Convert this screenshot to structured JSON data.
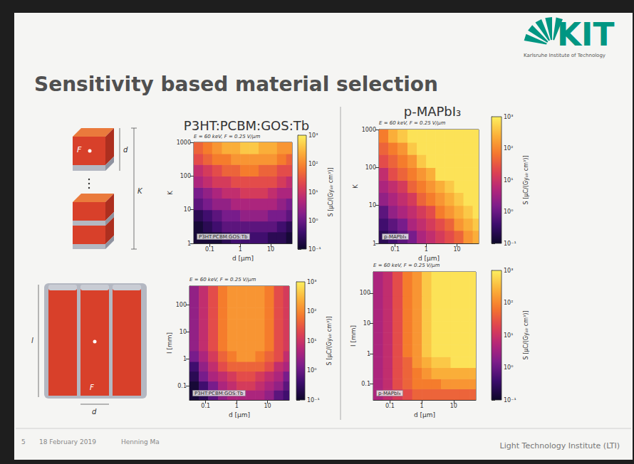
{
  "slide": {
    "title": "Sensitivity based material selection",
    "logo": "KIT",
    "logo_subtitle": "Karlsruhe Institute of Technology",
    "diagram": {
      "layered": {
        "area": "F",
        "thickness": "d",
        "layers": "K"
      },
      "columnar": {
        "length": "l",
        "area": "F",
        "width": "d"
      }
    },
    "footer": {
      "page": "5",
      "date": "18 February 2019",
      "author": "Henning Ma",
      "institute": "Light Technology Institute (LTI)"
    }
  },
  "chart_data": [
    {
      "type": "heatmap",
      "title": "P3HT:PCBM:GOS:Tb",
      "subtitle": "E = 60 keV, F = 0.25 V/μm",
      "annotations": [
        "P3HT:PCBM:GOS:Tb"
      ],
      "x_label": "d [μm]",
      "y_label": "K",
      "log": true,
      "grid": false,
      "xlim": [
        0.03,
        50
      ],
      "xticks": [
        0.1,
        1,
        10
      ],
      "ylim": [
        1,
        1000
      ],
      "yticks": [
        1,
        10,
        100,
        1000
      ],
      "x_bins": [
        0.03,
        0.06,
        0.12,
        0.25,
        0.5,
        1,
        2,
        4,
        8,
        16,
        32,
        50
      ],
      "y_bins": [
        1,
        2.2,
        4.6,
        10,
        22,
        46,
        100,
        220,
        460,
        1000
      ],
      "cells": [
        [
          0.05,
          0.096,
          0.16,
          0.25,
          0.33,
          0.38,
          0.38,
          0.35,
          0.28,
          0.19,
          0.13
        ],
        [
          0.12,
          0.22,
          0.37,
          0.57,
          0.75,
          0.87,
          0.89,
          0.8,
          0.64,
          0.45,
          0.3
        ],
        [
          0.27,
          0.51,
          0.86,
          1.3,
          1.7,
          2,
          2,
          1.8,
          1.5,
          1,
          0.7
        ],
        [
          0.63,
          1.2,
          2,
          3.1,
          4.1,
          4.7,
          4.8,
          4.4,
          3.5,
          2.4,
          1.7
        ],
        [
          1.5,
          2.8,
          4.7,
          7.1,
          9.4,
          11,
          11,
          10,
          8,
          5.6,
          3.8
        ],
        [
          3.4,
          6.4,
          11,
          16,
          22,
          25,
          26,
          23,
          18,
          13,
          8.8
        ],
        [
          7.9,
          15,
          26,
          39,
          52,
          60,
          61,
          55,
          44,
          31,
          21
        ],
        [
          18,
          35,
          59,
          90,
          120,
          140,
          140,
          130,
          100,
          71,
          48
        ],
        [
          42,
          81,
          140,
          210,
          270,
          320,
          320,
          290,
          230,
          160,
          110
        ]
      ],
      "colorbar_label": "S [μC/(Gyₐᵢᵣ cm³)]",
      "colorbar_lim": [
        0.1,
        1000
      ],
      "colorbar_ticks": [
        {
          "value": 0.1,
          "label": "10⁻¹"
        },
        {
          "value": 1,
          "label": "10⁰"
        },
        {
          "value": 10,
          "label": "10¹"
        },
        {
          "value": 100,
          "label": "10²"
        },
        {
          "value": 1000,
          "label": "10³"
        }
      ]
    },
    {
      "type": "heatmap",
      "title": "p-MAPbI₃",
      "subtitle": "E = 60 keV, F = 0.25 V/μm",
      "annotations": [
        "p-MAPbI₃"
      ],
      "x_label": "d [μm]",
      "y_label": "K",
      "log": true,
      "grid": false,
      "xlim": [
        0.03,
        50
      ],
      "xticks": [
        0.1,
        1,
        10
      ],
      "ylim": [
        1,
        1000
      ],
      "yticks": [
        1,
        10,
        100,
        1000
      ],
      "x_bins": [
        0.03,
        0.06,
        0.12,
        0.25,
        0.5,
        1,
        2,
        4,
        8,
        16,
        32,
        50
      ],
      "y_bins": [
        1,
        2.2,
        4.6,
        10,
        22,
        46,
        100,
        220,
        460,
        1000
      ],
      "cells": [
        [
          0.2,
          0.4,
          0.79,
          1.6,
          3.3,
          6.6,
          13,
          26,
          52,
          100,
          190
        ],
        [
          0.43,
          0.85,
          1.7,
          3.5,
          7.1,
          14,
          28,
          56,
          110,
          220,
          400
        ],
        [
          0.91,
          1.8,
          3.6,
          7.4,
          15,
          30,
          60,
          120,
          240,
          480,
          850
        ],
        [
          2,
          4,
          7.9,
          16,
          33,
          66,
          130,
          260,
          520,
          1000,
          1000
        ],
        [
          4.3,
          8.5,
          17,
          35,
          71,
          140,
          280,
          560,
          1000,
          1000,
          1000
        ],
        [
          9.1,
          18,
          36,
          74,
          150,
          300,
          600,
          1000,
          1000,
          1000,
          1000
        ],
        [
          20,
          40,
          79,
          160,
          330,
          660,
          1000,
          1000,
          1000,
          1000,
          1000
        ],
        [
          43,
          85,
          170,
          350,
          710,
          1000,
          1000,
          1000,
          1000,
          1000,
          1000
        ],
        [
          91,
          180,
          360,
          740,
          1000,
          1000,
          1000,
          1000,
          1000,
          1000,
          1000
        ]
      ],
      "colorbar_label": "S [μC/(Gyₐᵢᵣ cm³)]",
      "colorbar_lim": [
        0.1,
        1000
      ],
      "colorbar_ticks": [
        {
          "value": 0.1,
          "label": "10⁻¹"
        },
        {
          "value": 1,
          "label": "10⁰"
        },
        {
          "value": 10,
          "label": "10¹"
        },
        {
          "value": 100,
          "label": "10²"
        },
        {
          "value": 1000,
          "label": "10³"
        }
      ]
    },
    {
      "type": "heatmap",
      "subtitle": "E = 60 keV, F = 0.25 V/μm",
      "annotations": [
        "P3HT:PCBM:GOS:Tb"
      ],
      "x_label": "d [μm]",
      "y_label": "l [mm]",
      "log": true,
      "grid": false,
      "xlim": [
        0.03,
        50
      ],
      "xticks": [
        0.1,
        1,
        10
      ],
      "ylim": [
        0.03,
        500
      ],
      "yticks": [
        0.1,
        1,
        10,
        100
      ],
      "x_bins": [
        0.03,
        0.06,
        0.12,
        0.25,
        0.5,
        1,
        2,
        4,
        8,
        16,
        32,
        50
      ],
      "y_bins": [
        0.03,
        0.07,
        0.15,
        0.35,
        0.8,
        2,
        5,
        12,
        30,
        80,
        500
      ],
      "cells": [
        [
          0.059,
          0.26,
          0.83,
          2,
          3.8,
          5,
          5,
          3.8,
          2.1,
          0.89,
          0.35
        ],
        [
          0.12,
          0.54,
          1.7,
          4.3,
          7.9,
          10,
          10,
          7.9,
          4.5,
          1.9,
          0.72
        ],
        [
          0.25,
          1.1,
          3.5,
          8.7,
          16,
          21,
          21,
          16,
          9.1,
          3.8,
          1.5
        ],
        [
          0.54,
          2.3,
          7.6,
          19,
          35,
          46,
          46,
          35,
          19,
          8.1,
          3.2
        ],
        [
          1.2,
          5.1,
          17,
          41,
          76,
          100,
          100,
          76,
          43,
          18,
          6.9
        ],
        [
          1.8,
          7.8,
          25,
          62,
          110,
          150,
          150,
          110,
          65,
          27,
          10
        ],
        [
          1.8,
          7.8,
          25,
          62,
          110,
          150,
          150,
          110,
          65,
          27,
          10
        ],
        [
          1.8,
          7.8,
          25,
          62,
          110,
          150,
          150,
          110,
          65,
          27,
          10
        ],
        [
          1.8,
          7.8,
          25,
          62,
          110,
          150,
          150,
          110,
          65,
          27,
          10
        ],
        [
          1.8,
          7.8,
          25,
          62,
          110,
          150,
          150,
          110,
          65,
          27,
          10
        ]
      ],
      "colorbar_label": "S [μC/(Gyₐᵢᵣ cm³)]",
      "colorbar_lim": [
        0.1,
        1000
      ],
      "colorbar_ticks": [
        {
          "value": 0.1,
          "label": "10⁻¹"
        },
        {
          "value": 1,
          "label": "10⁰"
        },
        {
          "value": 10,
          "label": "10¹"
        },
        {
          "value": 100,
          "label": "10²"
        },
        {
          "value": 1000,
          "label": "10³"
        }
      ]
    },
    {
      "type": "heatmap",
      "subtitle": "E = 60 keV, F = 0.25 V/μm",
      "annotations": [
        "p-MAPbI₃"
      ],
      "x_label": "d [μm]",
      "y_label": "l [mm]",
      "log": true,
      "grid": false,
      "xlim": [
        0.03,
        50
      ],
      "xticks": [
        0.1,
        1,
        10
      ],
      "ylim": [
        0.03,
        500
      ],
      "yticks": [
        0.1,
        1,
        10,
        100
      ],
      "x_bins": [
        0.03,
        0.06,
        0.12,
        0.25,
        0.5,
        1,
        2,
        4,
        8,
        16,
        32,
        50
      ],
      "y_bins": [
        0.03,
        0.07,
        0.15,
        0.35,
        0.8,
        2,
        5,
        12,
        30,
        80,
        500
      ],
      "cells": [
        [
          3.6,
          7.9,
          15,
          24,
          32,
          36,
          38,
          39,
          40,
          40,
          40
        ],
        [
          3.9,
          9,
          20,
          38,
          62,
          82,
          95,
          100,
          100,
          100,
          100
        ],
        [
          3.9,
          9.5,
          22,
          49,
          97,
          160,
          210,
          250,
          260,
          270,
          270
        ],
        [
          4,
          9.7,
          23,
          55,
          125,
          250,
          420,
          560,
          660,
          700,
          720
        ],
        [
          4,
          9.8,
          24,
          58,
          140,
          320,
          650,
          1000,
          1000,
          1000,
          1000
        ],
        [
          4,
          9.8,
          24,
          60,
          150,
          360,
          830,
          1000,
          1000,
          1000,
          1000
        ],
        [
          4,
          9.8,
          24,
          60,
          150,
          370,
          900,
          1000,
          1000,
          1000,
          1000
        ],
        [
          4,
          9.8,
          24,
          60,
          150,
          380,
          930,
          1000,
          1000,
          1000,
          1000
        ],
        [
          4,
          9.8,
          24,
          60,
          150,
          380,
          940,
          1000,
          1000,
          1000,
          1000
        ],
        [
          4,
          9.8,
          24,
          60,
          150,
          380,
          950,
          1000,
          1000,
          1000,
          1000
        ]
      ],
      "colorbar_label": "S [μC/(Gyₐᵢᵣ cm³)]",
      "colorbar_lim": [
        0.1,
        1000
      ],
      "colorbar_ticks": [
        {
          "value": 0.1,
          "label": "10⁻¹"
        },
        {
          "value": 1,
          "label": "10⁰"
        },
        {
          "value": 10,
          "label": "10¹"
        },
        {
          "value": 100,
          "label": "10²"
        },
        {
          "value": 1000,
          "label": "10³"
        }
      ]
    }
  ]
}
